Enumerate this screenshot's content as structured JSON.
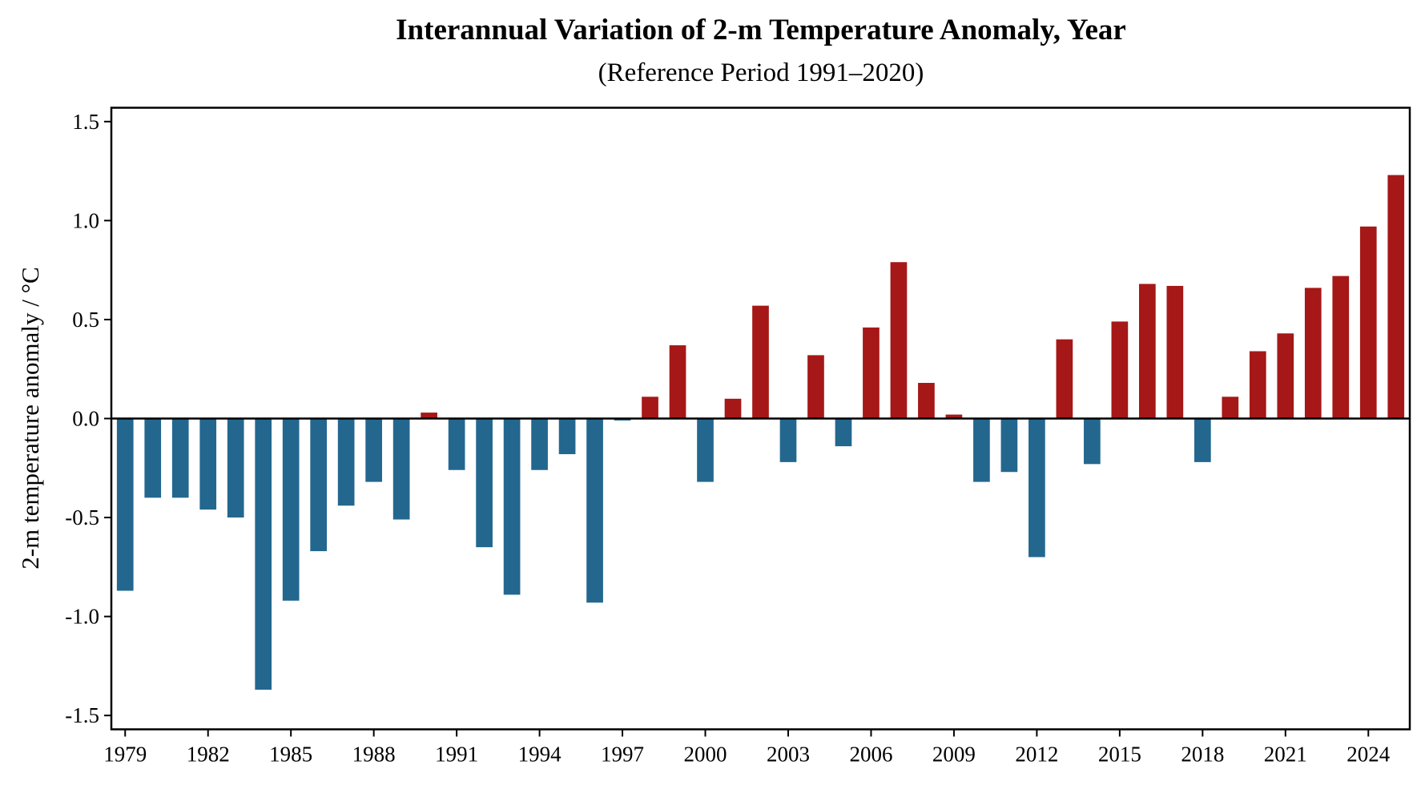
{
  "chart_data": {
    "type": "bar",
    "title": "Interannual Variation of 2-m Temperature Anomaly, Year",
    "subtitle": "(Reference Period 1991–2020)",
    "xlabel": "",
    "ylabel": "2-m temperature anomaly / °C",
    "xlim": [
      1978.5,
      2025.5
    ],
    "ylim": [
      -1.57,
      1.57
    ],
    "yticks": [
      -1.5,
      -1.0,
      -0.5,
      0.0,
      0.5,
      1.0,
      1.5
    ],
    "ytick_labels": [
      "-1.5",
      "-1.0",
      "-0.5",
      "0.0",
      "0.5",
      "1.0",
      "1.5"
    ],
    "xticks": [
      1979,
      1982,
      1985,
      1988,
      1991,
      1994,
      1997,
      2000,
      2003,
      2006,
      2009,
      2012,
      2015,
      2018,
      2021,
      2024
    ],
    "xtick_labels": [
      "1979",
      "1982",
      "1985",
      "1988",
      "1991",
      "1994",
      "1997",
      "2000",
      "2003",
      "2006",
      "2009",
      "2012",
      "2015",
      "2018",
      "2021",
      "2024"
    ],
    "grid": false,
    "legend": "none",
    "zero_line": true,
    "colors": {
      "positive": "#a61717",
      "negative": "#23678f"
    },
    "categories": [
      1979,
      1980,
      1981,
      1982,
      1983,
      1984,
      1985,
      1986,
      1987,
      1988,
      1989,
      1990,
      1991,
      1992,
      1993,
      1994,
      1995,
      1996,
      1997,
      1998,
      1999,
      2000,
      2001,
      2002,
      2003,
      2004,
      2005,
      2006,
      2007,
      2008,
      2009,
      2010,
      2011,
      2012,
      2013,
      2014,
      2015,
      2016,
      2017,
      2018,
      2019,
      2020,
      2021,
      2022,
      2023,
      2024,
      2025
    ],
    "values": [
      -0.87,
      -0.4,
      -0.4,
      -0.46,
      -0.5,
      -1.37,
      -0.92,
      -0.67,
      -0.44,
      -0.32,
      -0.51,
      0.03,
      -0.26,
      -0.65,
      -0.89,
      -0.26,
      -0.18,
      -0.93,
      -0.01,
      0.11,
      0.37,
      -0.32,
      0.1,
      0.57,
      -0.22,
      0.32,
      -0.14,
      0.46,
      0.79,
      0.18,
      0.02,
      -0.32,
      -0.27,
      -0.7,
      0.4,
      -0.23,
      0.49,
      0.68,
      0.67,
      -0.22,
      0.11,
      0.34,
      0.43,
      0.66,
      0.72,
      0.97,
      1.23
    ]
  }
}
